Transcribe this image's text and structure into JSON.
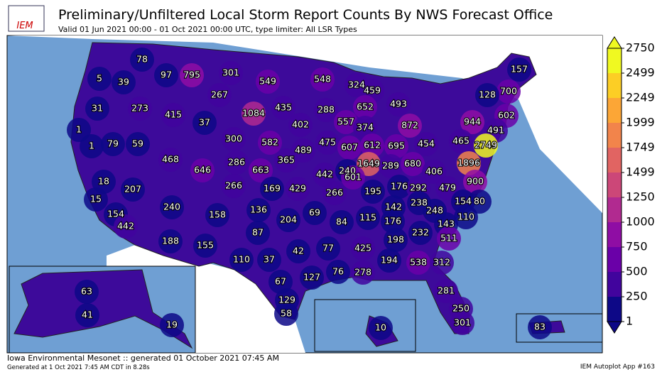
{
  "header": {
    "logo": "IEM",
    "title": "Preliminary/Unfiltered Local Storm Report Counts By NWS Forecast Office",
    "subtitle": "Valid 01 Jun 2021 00:00 - 01 Oct 2021 00:00 UTC, type limiter: All LSR Types"
  },
  "map": {
    "counts": [
      78,
      5,
      39,
      97,
      795,
      301,
      549,
      548,
      324,
      459,
      157,
      700,
      128,
      267,
      31,
      273,
      415,
      1084,
      435,
      288,
      652,
      493,
      602,
      944,
      491,
      1,
      37,
      402,
      557,
      374,
      872,
      1,
      79,
      59,
      300,
      582,
      489,
      475,
      607,
      612,
      695,
      454,
      465,
      2749,
      468,
      646,
      286,
      663,
      365,
      442,
      240,
      1649,
      289,
      680,
      406,
      1896,
      18,
      207,
      266,
      169,
      429,
      266,
      601,
      195,
      176,
      292,
      479,
      900,
      15,
      154,
      240,
      158,
      136,
      204,
      69,
      84,
      115,
      142,
      238,
      248,
      154,
      80,
      110,
      442,
      87,
      176,
      143,
      188,
      155,
      232,
      198,
      511,
      42,
      77,
      425,
      110,
      37,
      194,
      538,
      312,
      278,
      76,
      127,
      67,
      281,
      129,
      250,
      58,
      301,
      63,
      41,
      19,
      10,
      83
    ],
    "colorbar": {
      "ylim": [
        1,
        2750
      ],
      "yticks": [
        1,
        250,
        500,
        750,
        1000,
        1250,
        1499,
        1749,
        1999,
        2249,
        2499,
        2750
      ],
      "colors": [
        "#0d0887",
        "#41049d",
        "#6a00a8",
        "#8f0da4",
        "#b12a90",
        "#cc4778",
        "#e16462",
        "#f2844b",
        "#fca636",
        "#fcce25",
        "#f0f921"
      ]
    }
  },
  "footer": {
    "line1": "Iowa Environmental Mesonet :: generated 01 October 2021 07:45 AM",
    "line2": "Generated at 1 Oct 2021 7:45 AM CDT in 8.28s",
    "app": "IEM Autoplot App #163"
  }
}
